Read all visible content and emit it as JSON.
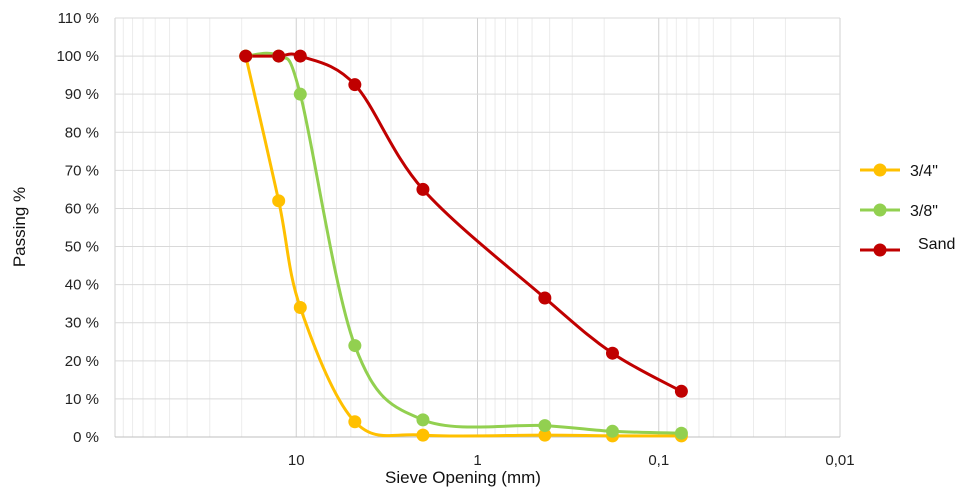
{
  "chart_data": {
    "type": "line",
    "title": "",
    "xlabel": "Sieve Opening (mm)",
    "ylabel": "Passing  %",
    "x_scale": "log",
    "x_reversed": true,
    "xlim": [
      100,
      0.01
    ],
    "ylim": [
      0,
      110
    ],
    "grid": true,
    "legend_position": "right",
    "y_ticks": [
      {
        "value": 0,
        "label": "0 %"
      },
      {
        "value": 10,
        "label": "10 %"
      },
      {
        "value": 20,
        "label": "20 %"
      },
      {
        "value": 30,
        "label": "30 %"
      },
      {
        "value": 40,
        "label": "40 %"
      },
      {
        "value": 50,
        "label": "50 %"
      },
      {
        "value": 60,
        "label": "60 %"
      },
      {
        "value": 70,
        "label": "70 %"
      },
      {
        "value": 80,
        "label": "80 %"
      },
      {
        "value": 90,
        "label": "90 %"
      },
      {
        "value": 100,
        "label": "100 %"
      },
      {
        "value": 110,
        "label": "110 %"
      }
    ],
    "x_ticks": [
      {
        "value": 10,
        "label": "10"
      },
      {
        "value": 1,
        "label": "1"
      },
      {
        "value": 0.1,
        "label": "0,1"
      },
      {
        "value": 0.01,
        "label": "0,01"
      }
    ],
    "series": [
      {
        "name": "3/4\"",
        "color": "#FFC000",
        "x": [
          19.0,
          12.5,
          9.5,
          4.75,
          2.0,
          0.425,
          0.18,
          0.075
        ],
        "y": [
          100,
          62,
          34,
          4,
          0.5,
          0.5,
          0.3,
          0.3
        ]
      },
      {
        "name": "3/8\"",
        "color": "#92D050",
        "x": [
          19.0,
          12.5,
          9.5,
          4.75,
          2.0,
          0.425,
          0.18,
          0.075
        ],
        "y": [
          100,
          100,
          90,
          24,
          4.5,
          3,
          1.5,
          1
        ]
      },
      {
        "name": "Sand",
        "color": "#C00000",
        "x": [
          19.0,
          12.5,
          9.5,
          4.75,
          2.0,
          0.425,
          0.18,
          0.075
        ],
        "y": [
          100,
          100,
          100,
          92.5,
          65,
          36.5,
          22,
          12
        ]
      }
    ]
  }
}
